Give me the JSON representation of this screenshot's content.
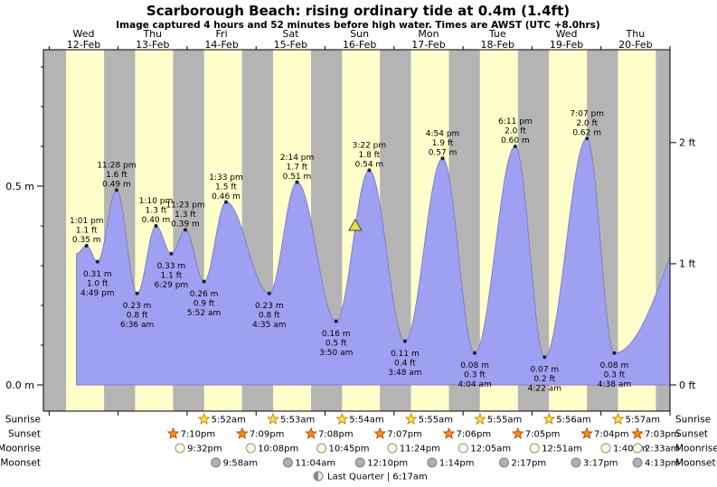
{
  "chart_data": {
    "type": "area",
    "title": "Scarborough Beach: rising  ordinary tide at 0.4m (1.4ft)",
    "subtitle": "Image captured 4 hours and 52 minutes before high water. Times are AWST (UTC +8.0hrs)",
    "ylim_m": [
      0.0,
      0.84
    ],
    "grid": false,
    "y_ticks_m": [
      {
        "value": 0.0,
        "label": "0.0 m"
      },
      {
        "value": 0.5,
        "label": "0.5 m"
      }
    ],
    "y_ticks_ft": [
      {
        "value": 0,
        "label": "0 ft"
      },
      {
        "value": 1,
        "label": "1 ft"
      },
      {
        "value": 2,
        "label": "2 ft"
      }
    ],
    "days": [
      {
        "name": "Wed",
        "date": "12-Feb"
      },
      {
        "name": "Thu",
        "date": "13-Feb"
      },
      {
        "name": "Fri",
        "date": "14-Feb"
      },
      {
        "name": "Sat",
        "date": "15-Feb"
      },
      {
        "name": "Sun",
        "date": "16-Feb"
      },
      {
        "name": "Mon",
        "date": "17-Feb"
      },
      {
        "name": "Tue",
        "date": "18-Feb"
      },
      {
        "name": "Wed",
        "date": "19-Feb"
      },
      {
        "name": "Thu",
        "date": "20-Feb"
      }
    ],
    "extremes": [
      {
        "type": "high",
        "day": 0,
        "time": "1:01 pm",
        "height_m": 0.35,
        "label_ft": "1.1 ft",
        "label_m": "0.35 m"
      },
      {
        "type": "low",
        "day": 0,
        "time": "4:49 pm",
        "height_m": 0.31,
        "label_ft": "1.0 ft",
        "label_m": "0.31 m"
      },
      {
        "type": "high",
        "day": 0,
        "time": "11:28 pm",
        "height_m": 0.49,
        "label_ft": "1.6 ft",
        "label_m": "0.49 m"
      },
      {
        "type": "low",
        "day": 1,
        "time": "6:36 am",
        "height_m": 0.23,
        "label_ft": "0.8 ft",
        "label_m": "0.23 m"
      },
      {
        "type": "high",
        "day": 1,
        "time": "1:10 pm",
        "height_m": 0.4,
        "label_ft": "1.3 ft",
        "label_m": "0.40 m"
      },
      {
        "type": "low",
        "day": 1,
        "time": "6:29 pm",
        "height_m": 0.33,
        "label_ft": "1.1 ft",
        "label_m": "0.33 m"
      },
      {
        "type": "high",
        "day": 1,
        "time": "11:23 pm",
        "height_m": 0.39,
        "label_ft": "1.3 ft",
        "label_m": "0.39 m"
      },
      {
        "type": "low",
        "day": 2,
        "time": "5:52 am",
        "height_m": 0.26,
        "label_ft": "0.9 ft",
        "label_m": "0.26 m"
      },
      {
        "type": "high",
        "day": 2,
        "time": "1:33 pm",
        "height_m": 0.46,
        "label_ft": "1.5 ft",
        "label_m": "0.46 m"
      },
      {
        "type": "low",
        "day": 3,
        "time": "4:35 am",
        "height_m": 0.23,
        "label_ft": "0.8 ft",
        "label_m": "0.23 m"
      },
      {
        "type": "high",
        "day": 3,
        "time": "2:14 pm",
        "height_m": 0.51,
        "label_ft": "1.7 ft",
        "label_m": "0.51 m"
      },
      {
        "type": "low",
        "day": 4,
        "time": "3:50 am",
        "height_m": 0.16,
        "label_ft": "0.5 ft",
        "label_m": "0.16 m"
      },
      {
        "type": "high",
        "day": 4,
        "time": "3:22 pm",
        "height_m": 0.54,
        "label_ft": "1.8 ft",
        "label_m": "0.54 m"
      },
      {
        "type": "low",
        "day": 5,
        "time": "3:48 am",
        "height_m": 0.11,
        "label_ft": "0.4 ft",
        "label_m": "0.11 m"
      },
      {
        "type": "high",
        "day": 5,
        "time": "4:54 pm",
        "height_m": 0.57,
        "label_ft": "1.9 ft",
        "label_m": "0.57 m"
      },
      {
        "type": "low",
        "day": 6,
        "time": "4:04 am",
        "height_m": 0.08,
        "label_ft": "0.3 ft",
        "label_m": "0.08 m"
      },
      {
        "type": "high",
        "day": 6,
        "time": "6:11 pm",
        "height_m": 0.6,
        "label_ft": "2.0 ft",
        "label_m": "0.60 m"
      },
      {
        "type": "low",
        "day": 7,
        "time": "4:22 am",
        "height_m": 0.07,
        "label_ft": "0.2 ft",
        "label_m": "0.07 m"
      },
      {
        "type": "high",
        "day": 7,
        "time": "7:07 pm",
        "height_m": 0.62,
        "label_ft": "2.0 ft",
        "label_m": "0.62 m"
      },
      {
        "type": "low",
        "day": 8,
        "time": "4:38 am",
        "height_m": 0.08,
        "label_ft": "0.3 ft",
        "label_m": "0.08 m"
      }
    ],
    "curve_start": {
      "day": 0,
      "time": "9:30 am",
      "height_m": 0.33
    },
    "curve_end_pseudo": {
      "day": 9,
      "time": "10:00 pm",
      "height_m": 0.62
    },
    "now_marker": {
      "day": 4,
      "time": "10:30 am",
      "height_m": 0.4
    },
    "night": {
      "sunset_hour": 19.1,
      "sunrise_hour": 5.9
    }
  },
  "astro": {
    "rows": [
      {
        "label": "Sunrise",
        "icon": "sunrise-icon",
        "events": [
          {
            "day": 2,
            "time": "5:52am"
          },
          {
            "day": 3,
            "time": "5:53am"
          },
          {
            "day": 4,
            "time": "5:54am"
          },
          {
            "day": 5,
            "time": "5:55am"
          },
          {
            "day": 6,
            "time": "5:55am"
          },
          {
            "day": 7,
            "time": "5:56am"
          },
          {
            "day": 8,
            "time": "5:57am"
          }
        ]
      },
      {
        "label": "Sunset",
        "icon": "sunset-icon",
        "events": [
          {
            "day": 1,
            "time": "7:10pm"
          },
          {
            "day": 2,
            "time": "7:09pm"
          },
          {
            "day": 3,
            "time": "7:08pm"
          },
          {
            "day": 4,
            "time": "7:07pm"
          },
          {
            "day": 5,
            "time": "7:06pm"
          },
          {
            "day": 6,
            "time": "7:05pm"
          },
          {
            "day": 7,
            "time": "7:04pm"
          },
          {
            "day": 8,
            "time": "7:03pm"
          }
        ]
      },
      {
        "label": "Moonrise",
        "icon": "moonrise-icon",
        "events": [
          {
            "day": 1,
            "time": "9:32pm"
          },
          {
            "day": 2,
            "time": "10:08pm"
          },
          {
            "day": 3,
            "time": "10:45pm"
          },
          {
            "day": 4,
            "time": "11:24pm"
          },
          {
            "day": 6,
            "time": "12:05am"
          },
          {
            "day": 7,
            "time": "12:51am"
          },
          {
            "day": 8,
            "time": "1:40am"
          },
          {
            "day": 9,
            "time": "2:33am"
          }
        ]
      },
      {
        "label": "Moonset",
        "icon": "moonset-icon",
        "events": [
          {
            "day": 2,
            "time": "9:58am"
          },
          {
            "day": 3,
            "time": "11:04am"
          },
          {
            "day": 4,
            "time": "12:10pm"
          },
          {
            "day": 5,
            "time": "1:14pm"
          },
          {
            "day": 6,
            "time": "2:17pm"
          },
          {
            "day": 7,
            "time": "3:17pm"
          },
          {
            "day": 8,
            "time": "4:13pm"
          }
        ]
      }
    ],
    "moon_phase": {
      "label": "Last Quarter | 6:17am",
      "icon": "last-quarter-moon-icon"
    }
  },
  "colors": {
    "page_bg": "#ffffff",
    "plot_bg": "#ffffcb",
    "night_band": "#b4b4b4",
    "tide_fill": "#a0a0f2",
    "tide_stroke": "#7f7fc8",
    "date_red": "#ee0000",
    "marker_yellow": "#e2e23c",
    "dot": "#1a1a40",
    "sunrise_star_fill": "#ffe14c",
    "sunrise_star_stroke": "#bb8f00",
    "sunset_star_fill": "#ff8c1a",
    "sunset_star_stroke": "#c24d00",
    "moonrise_fill": "#ffffdd",
    "moonrise_stroke": "#909090",
    "moonset_fill": "#b0b0b0",
    "moonset_stroke": "#808080"
  }
}
